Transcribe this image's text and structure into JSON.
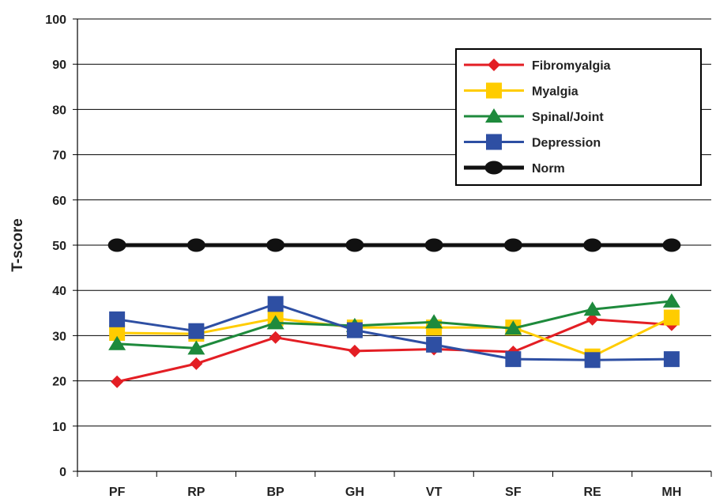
{
  "chart_data": {
    "type": "line",
    "title": "",
    "xlabel": "",
    "ylabel": "T-score",
    "ylim": [
      0,
      100
    ],
    "yticks": [
      0,
      10,
      20,
      30,
      40,
      50,
      60,
      70,
      80,
      90,
      100
    ],
    "categories": [
      "PF",
      "RP",
      "BP",
      "GH",
      "VT",
      "SF",
      "RE",
      "MH"
    ],
    "grid": "horizontal",
    "legend_position": "top-right",
    "series": [
      {
        "name": "Fibromyalgia",
        "color": "#e31e24",
        "marker": "diamond",
        "values": [
          19.8,
          23.8,
          29.6,
          26.6,
          27.0,
          26.4,
          33.6,
          32.4
        ]
      },
      {
        "name": "Myalgia",
        "color": "#ffcc00",
        "marker": "square",
        "values": [
          30.6,
          30.4,
          33.8,
          31.8,
          31.8,
          31.8,
          25.4,
          34.0
        ]
      },
      {
        "name": "Spinal/Joint",
        "color": "#1e8a3c",
        "marker": "triangle",
        "values": [
          28.2,
          27.2,
          32.8,
          32.2,
          33.0,
          31.6,
          35.8,
          37.6
        ]
      },
      {
        "name": "Depression",
        "color": "#2e4fa3",
        "marker": "square",
        "values": [
          33.6,
          31.0,
          37.0,
          31.2,
          28.0,
          24.8,
          24.6,
          24.8
        ]
      },
      {
        "name": "Norm",
        "color": "#111111",
        "marker": "circle",
        "values": [
          50,
          50,
          50,
          50,
          50,
          50,
          50,
          50
        ]
      }
    ]
  }
}
